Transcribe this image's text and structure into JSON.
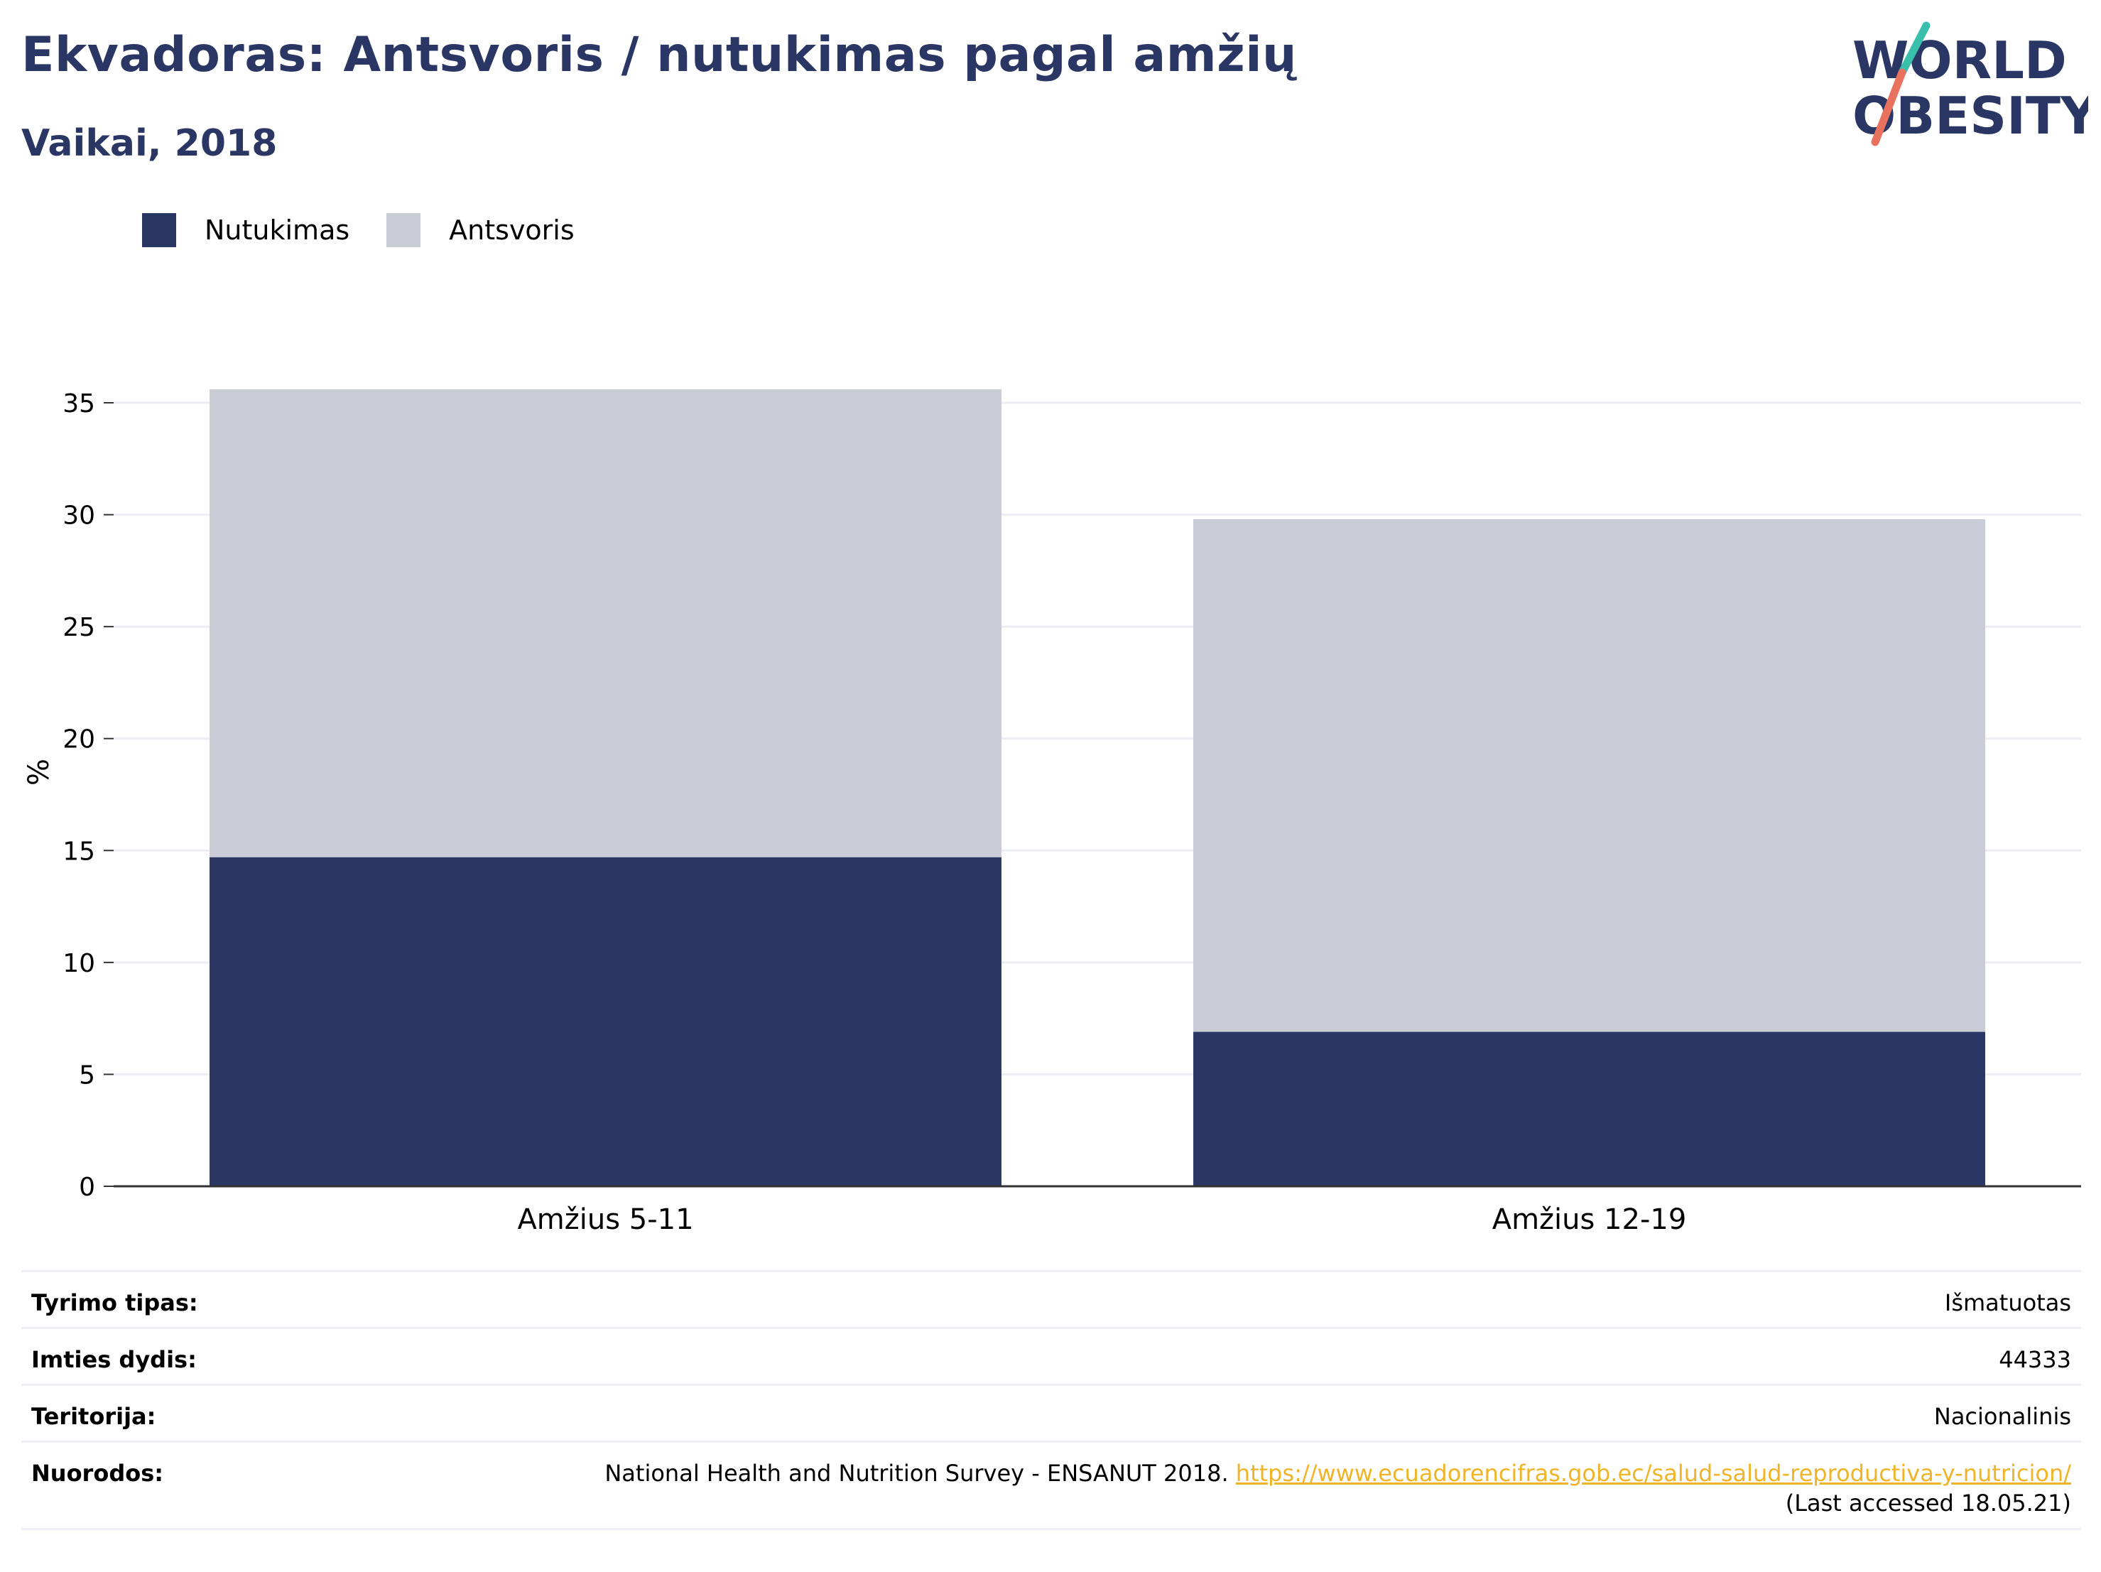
{
  "header": {
    "title": "Ekvadoras: Antsvoris / nutukimas pagal amžių",
    "subtitle": "Vaikai, 2018"
  },
  "logo": {
    "line1": "WORLD",
    "line2": "OBESITY",
    "colors": {
      "text": "#2a3663",
      "teal": "#3bbfad",
      "coral": "#e8725e"
    }
  },
  "legend": [
    {
      "label": "Nutukimas",
      "color": "#2a3663"
    },
    {
      "label": "Antsvoris",
      "color": "#c9ccd7"
    }
  ],
  "chart_data": {
    "type": "bar",
    "stacked": true,
    "categories": [
      "Amžius 5-11",
      "Amžius 12-19"
    ],
    "series": [
      {
        "name": "Nutukimas",
        "values": [
          14.7,
          6.9
        ],
        "color": "#2a3663"
      },
      {
        "name": "Antsvoris",
        "values": [
          20.9,
          22.9
        ],
        "color": "#c9ccd7"
      }
    ],
    "ylabel": "%",
    "ylim": [
      0,
      37
    ],
    "yticks": [
      0,
      5,
      10,
      15,
      20,
      25,
      30,
      35
    ],
    "grid": true,
    "legend_position": "top-left"
  },
  "info": {
    "rows": [
      {
        "label": "Tyrimo tipas:",
        "value": "Išmatuotas"
      },
      {
        "label": "Imties dydis:",
        "value": "44333"
      },
      {
        "label": "Teritorija:",
        "value": "Nacionalinis"
      }
    ],
    "references": {
      "label": "Nuorodos:",
      "text": "National Health and Nutrition Survey - ENSANUT 2018. ",
      "link": "https://www.ecuadorencifras.gob.ec/salud-salud-reproductiva-y-nutricion/",
      "accessed": "(Last accessed 18.05.21)"
    }
  }
}
